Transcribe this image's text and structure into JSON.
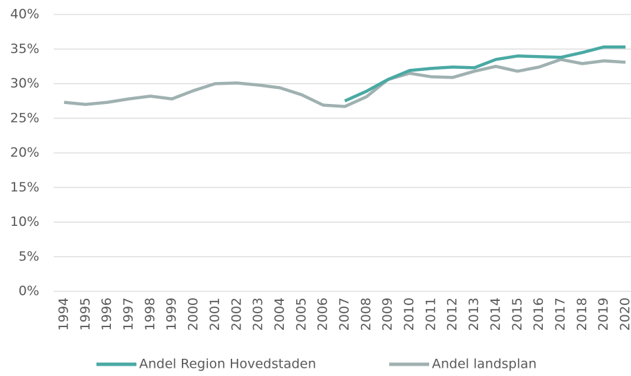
{
  "chart_data": {
    "type": "line",
    "categories": [
      "1994",
      "1995",
      "1996",
      "1997",
      "1998",
      "1999",
      "2000",
      "2001",
      "2002",
      "2003",
      "2004",
      "2005",
      "2006",
      "2007",
      "2008",
      "2009",
      "2010",
      "2011",
      "2012",
      "2013",
      "2014",
      "2015",
      "2016",
      "2017",
      "2018",
      "2019",
      "2020"
    ],
    "series": [
      {
        "name": "Andel Region Hovedstaden",
        "color": "#4aa9a4",
        "values": [
          null,
          null,
          null,
          null,
          null,
          null,
          null,
          null,
          null,
          null,
          null,
          null,
          null,
          27.5,
          28.9,
          30.6,
          31.9,
          32.2,
          32.4,
          32.3,
          33.5,
          34.0,
          33.9,
          33.8,
          34.5,
          35.3,
          35.3
        ]
      },
      {
        "name": "Andel landsplan",
        "color": "#9fb1b0",
        "values": [
          27.3,
          27.0,
          27.3,
          27.8,
          28.2,
          27.8,
          29.0,
          30.0,
          30.1,
          29.8,
          29.4,
          28.4,
          26.9,
          26.7,
          28.1,
          30.6,
          31.5,
          31.0,
          30.9,
          31.8,
          32.5,
          31.8,
          32.4,
          33.5,
          32.9,
          33.3,
          33.1
        ]
      }
    ],
    "ylim": [
      0,
      40
    ],
    "yticks": [
      {
        "value": 0,
        "label": "0%"
      },
      {
        "value": 5,
        "label": "5%"
      },
      {
        "value": 10,
        "label": "10%"
      },
      {
        "value": 15,
        "label": "15%"
      },
      {
        "value": 20,
        "label": "20%"
      },
      {
        "value": 25,
        "label": "25%"
      },
      {
        "value": 30,
        "label": "30%"
      },
      {
        "value": 35,
        "label": "35%"
      },
      {
        "value": 40,
        "label": "40%"
      }
    ],
    "grid": true,
    "legend": "bottom"
  }
}
